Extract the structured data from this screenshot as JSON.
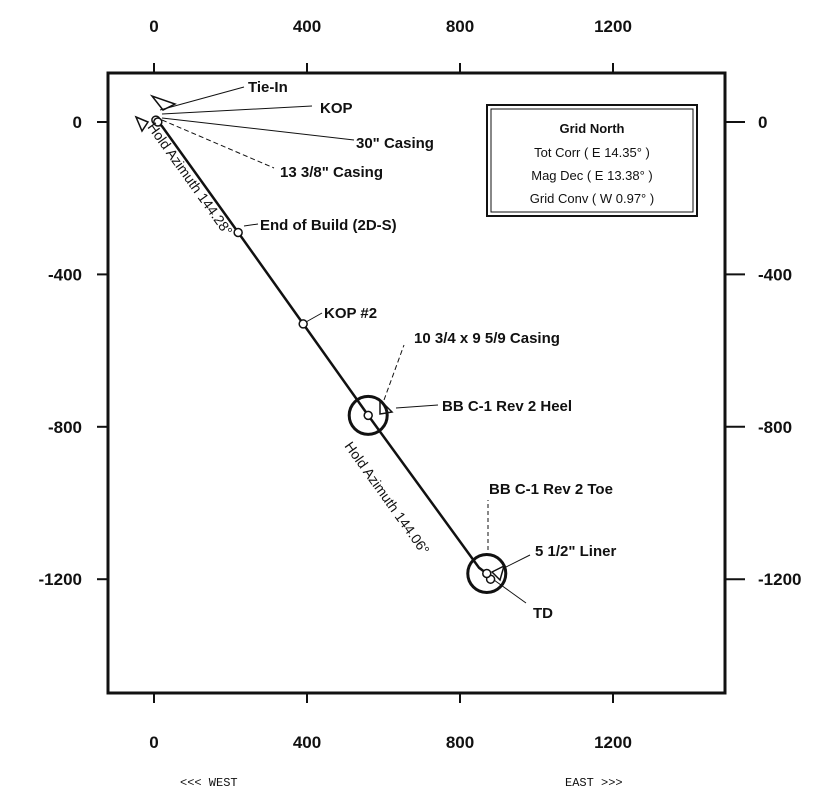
{
  "chart_data": {
    "type": "line",
    "title": "",
    "x_axis": {
      "ticks": [
        0,
        400,
        800,
        1200
      ],
      "range": [
        -100,
        1480
      ],
      "left_label": "<<< WEST",
      "right_label": "EAST >>>"
    },
    "y_axis": {
      "ticks": [
        0,
        -400,
        -800,
        -1200
      ],
      "range": [
        -1500,
        130
      ]
    },
    "series": [
      {
        "x": [
          0,
          20,
          220,
          390,
          560,
          850,
          870,
          880
        ],
        "y": [
          0,
          -10,
          -290,
          -530,
          -770,
          -1170,
          -1185,
          -1200
        ]
      }
    ],
    "markers": [
      {
        "label": "Tie-In",
        "x": 5,
        "y": 5
      },
      {
        "label": "KOP",
        "x": 10,
        "y": 0
      },
      {
        "label": "End of Build  (2D-S)",
        "x": 220,
        "y": -290
      },
      {
        "label": "KOP #2",
        "x": 390,
        "y": -530
      },
      {
        "label": "TD",
        "x": 880,
        "y": -1200
      }
    ],
    "targets": [
      {
        "label": "BB C-1 Rev 2 Heel",
        "x": 560,
        "y": -770
      },
      {
        "label": "BB C-1 Rev 2 Toe",
        "x": 870,
        "y": -1185
      }
    ],
    "annotations": [
      {
        "text": "30\" Casing"
      },
      {
        "text": "13 3/8\" Casing"
      },
      {
        "text": "10 3/4 x 9 5/9 Casing"
      },
      {
        "text": "5 1/2\" Liner"
      },
      {
        "text": "Hold Azimuth 144.28°"
      },
      {
        "text": "Hold Azimuth 144.06°"
      }
    ],
    "info_box": {
      "title": "Grid North",
      "lines": [
        "Tot Corr ( E 14.35° )",
        "Mag Dec ( E 13.38° )",
        "Grid Conv ( W 0.97° )"
      ]
    }
  }
}
